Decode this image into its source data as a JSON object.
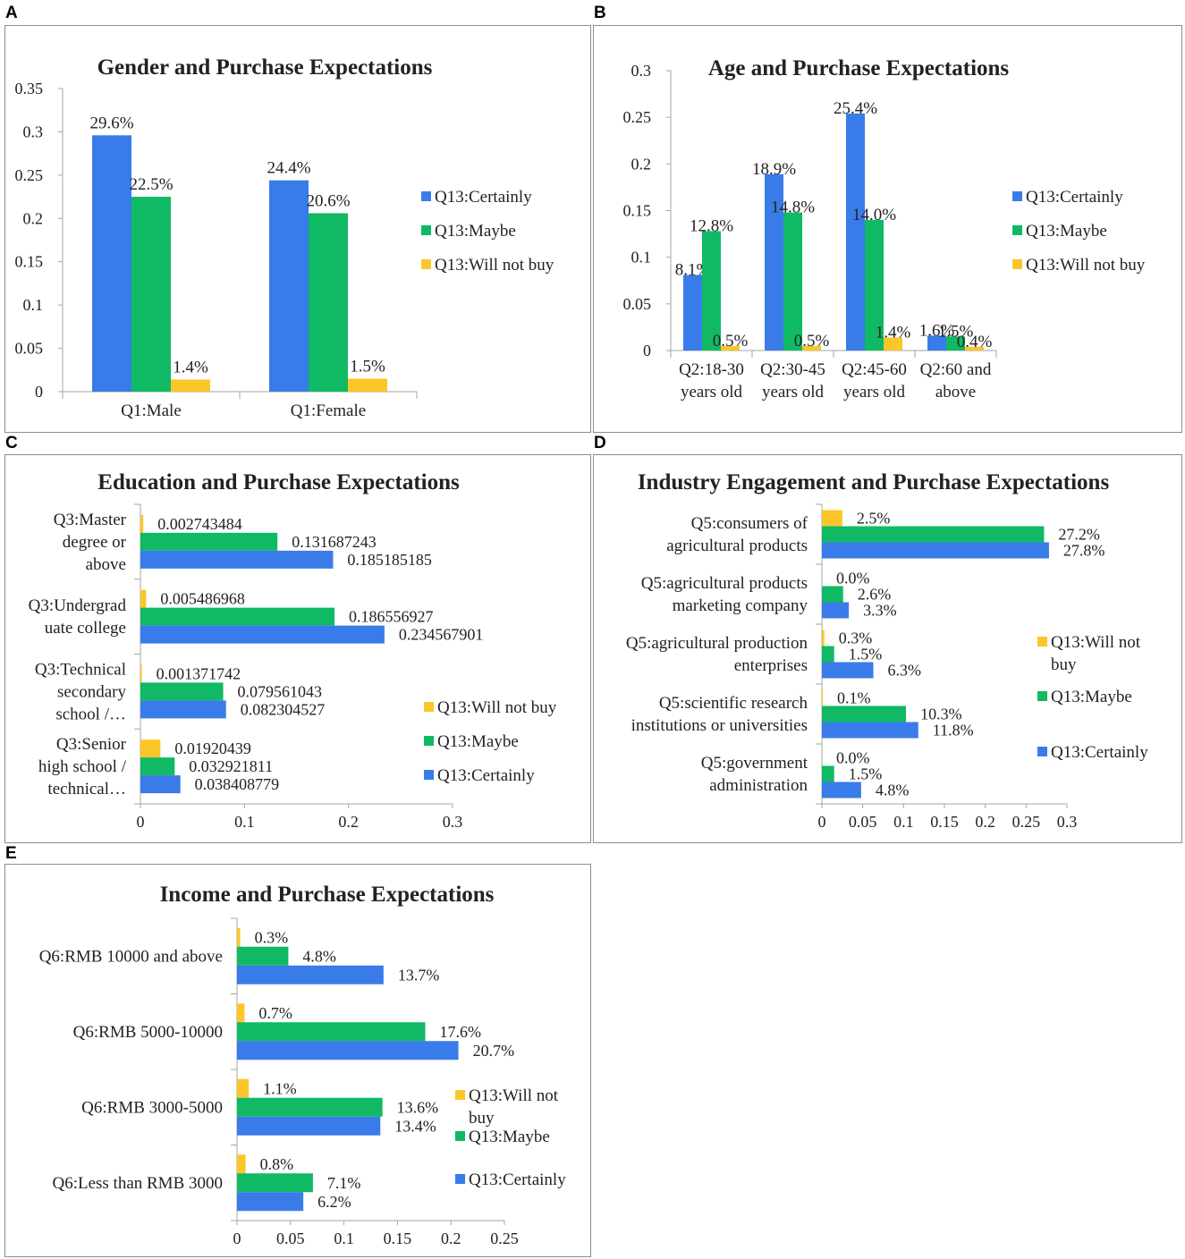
{
  "panel_letters": [
    "A",
    "B",
    "C",
    "D",
    "E"
  ],
  "colors": {
    "certainly": "#3a7bea",
    "maybe": "#10b963",
    "will_not_buy": "#fbc62a",
    "axis": "#a6a6a6",
    "text": "#222222"
  },
  "chart_data": [
    {
      "id": "A",
      "type": "bar",
      "orientation": "vertical",
      "title": "Gender and Purchase Expectations",
      "categories": [
        "Q1:Male",
        "Q1:Female"
      ],
      "category_lines": [
        [
          "Q1:Male"
        ],
        [
          "Q1:Female"
        ]
      ],
      "series": [
        {
          "name": "Q13:Certainly",
          "color": "#3a7bea",
          "values": [
            0.296,
            0.244
          ],
          "labels": [
            "29.6%",
            "24.4%"
          ]
        },
        {
          "name": "Q13:Maybe",
          "color": "#10b963",
          "values": [
            0.225,
            0.206
          ],
          "labels": [
            "22.5%",
            "20.6%"
          ]
        },
        {
          "name": "Q13:Will not buy",
          "color": "#fbc62a",
          "values": [
            0.014,
            0.015
          ],
          "labels": [
            "1.4%",
            "1.5%"
          ]
        }
      ],
      "ylim": [
        0,
        0.35
      ],
      "ticks": [
        0,
        0.05,
        0.1,
        0.15,
        0.2,
        0.25,
        0.3,
        0.35
      ],
      "tick_labels": [
        "0",
        "0.05",
        "0.1",
        "0.15",
        "0.2",
        "0.25",
        "0.3",
        "0.35"
      ],
      "legend": {
        "position": "right",
        "order": [
          "Q13:Certainly",
          "Q13:Maybe",
          "Q13:Will not buy"
        ],
        "lines": [
          [
            "Q13:Certainly"
          ],
          [
            "Q13:Maybe"
          ],
          [
            "Q13:Will not buy"
          ]
        ]
      }
    },
    {
      "id": "B",
      "type": "bar",
      "orientation": "vertical",
      "title": "Age and Purchase Expectations",
      "categories": [
        "Q2:18-30 years old",
        "Q2:30-45 years old",
        "Q2:45-60 years old",
        "Q2:60 and above"
      ],
      "category_lines": [
        [
          "Q2:18-30",
          "years old"
        ],
        [
          "Q2:30-45",
          "years old"
        ],
        [
          "Q2:45-60",
          "years old"
        ],
        [
          "Q2:60 and",
          "above"
        ]
      ],
      "series": [
        {
          "name": "Q13:Certainly",
          "color": "#3a7bea",
          "values": [
            0.081,
            0.189,
            0.254,
            0.016
          ],
          "labels": [
            "8.1%",
            "18.9%",
            "25.4%",
            "1.6%"
          ]
        },
        {
          "name": "Q13:Maybe",
          "color": "#10b963",
          "values": [
            0.128,
            0.148,
            0.14,
            0.015
          ],
          "labels": [
            "12.8%",
            "14.8%",
            "14.0%",
            "1.5%"
          ]
        },
        {
          "name": "Q13:Will not buy",
          "color": "#fbc62a",
          "values": [
            0.005,
            0.005,
            0.014,
            0.004
          ],
          "labels": [
            "0.5%",
            "0.5%",
            "1.4%",
            "0.4%"
          ]
        }
      ],
      "ylim": [
        0,
        0.3
      ],
      "ticks": [
        0,
        0.05,
        0.1,
        0.15,
        0.2,
        0.25,
        0.3
      ],
      "tick_labels": [
        "0",
        "0.05",
        "0.1",
        "0.15",
        "0.2",
        "0.25",
        "0.3"
      ],
      "legend": {
        "position": "right",
        "order": [
          "Q13:Certainly",
          "Q13:Maybe",
          "Q13:Will not buy"
        ],
        "lines": [
          [
            "Q13:Certainly"
          ],
          [
            "Q13:Maybe"
          ],
          [
            "Q13:Will not buy"
          ]
        ]
      }
    },
    {
      "id": "C",
      "type": "bar",
      "orientation": "horizontal",
      "title": "Education and Purchase Expectations",
      "categories": [
        "Q3:Master degree or above",
        "Q3:Undergraduate college",
        "Q3:Technical secondary school /…",
        "Q3:Senior high school / technical…"
      ],
      "category_lines": [
        [
          "Q3:Master",
          "degree or",
          "above"
        ],
        [
          "Q3:Undergrad",
          "uate college"
        ],
        [
          "Q3:Technical",
          "secondary",
          "school /…"
        ],
        [
          "Q3:Senior",
          "high school /",
          "technical…"
        ]
      ],
      "series": [
        {
          "name": "Q13:Will not buy",
          "color": "#fbc62a",
          "values": [
            0.002743484,
            0.005486968,
            0.001371742,
            0.01920439
          ],
          "labels": [
            "0.002743484",
            "0.005486968",
            "0.001371742",
            "0.01920439"
          ]
        },
        {
          "name": "Q13:Maybe",
          "color": "#10b963",
          "values": [
            0.131687243,
            0.186556927,
            0.079561043,
            0.032921811
          ],
          "labels": [
            "0.131687243",
            "0.186556927",
            "0.079561043",
            "0.032921811"
          ]
        },
        {
          "name": "Q13:Certainly",
          "color": "#3a7bea",
          "values": [
            0.185185185,
            0.234567901,
            0.082304527,
            0.038408779
          ],
          "labels": [
            "0.185185185",
            "0.234567901",
            "0.082304527",
            "0.038408779"
          ]
        }
      ],
      "xlim": [
        0,
        0.3
      ],
      "ticks": [
        0,
        0.1,
        0.2,
        0.3
      ],
      "tick_labels": [
        "0",
        "0.1",
        "0.2",
        "0.3"
      ],
      "legend": {
        "position": "right",
        "order": [
          "Q13:Will not buy",
          "Q13:Maybe",
          "Q13:Certainly"
        ],
        "lines": [
          [
            "Q13:Will not buy"
          ],
          [
            "Q13:Maybe"
          ],
          [
            "Q13:Certainly"
          ]
        ]
      }
    },
    {
      "id": "D",
      "type": "bar",
      "orientation": "horizontal",
      "title": "Industry Engagement and Purchase Expectations",
      "categories": [
        "Q5:consumers of agricultural products",
        "Q5:agricultural products marketing company",
        "Q5:agricultural production enterprises",
        "Q5:scientific research institutions or universities",
        "Q5:government administration"
      ],
      "category_lines": [
        [
          "Q5:consumers of",
          "agricultural products"
        ],
        [
          "Q5:agricultural products",
          "marketing company"
        ],
        [
          "Q5:agricultural production",
          "enterprises"
        ],
        [
          "Q5:scientific research",
          "institutions or universities"
        ],
        [
          "Q5:government",
          "administration"
        ]
      ],
      "series": [
        {
          "name": "Q13:Will not buy",
          "color": "#fbc62a",
          "values": [
            0.025,
            0.0,
            0.003,
            0.001,
            0.0
          ],
          "labels": [
            "2.5%",
            "0.0%",
            "0.3%",
            "0.1%",
            "0.0%"
          ]
        },
        {
          "name": "Q13:Maybe",
          "color": "#10b963",
          "values": [
            0.272,
            0.026,
            0.015,
            0.103,
            0.015
          ],
          "labels": [
            "27.2%",
            "2.6%",
            "1.5%",
            "10.3%",
            "1.5%"
          ]
        },
        {
          "name": "Q13:Certainly",
          "color": "#3a7bea",
          "values": [
            0.278,
            0.033,
            0.063,
            0.118,
            0.048
          ],
          "labels": [
            "27.8%",
            "3.3%",
            "6.3%",
            "11.8%",
            "4.8%"
          ]
        }
      ],
      "xlim": [
        0,
        0.3
      ],
      "ticks": [
        0,
        0.05,
        0.1,
        0.15,
        0.2,
        0.25,
        0.3
      ],
      "tick_labels": [
        "0",
        "0.05",
        "0.1",
        "0.15",
        "0.2",
        "0.25",
        "0.3"
      ],
      "legend": {
        "position": "right",
        "order": [
          "Q13:Will not buy",
          "Q13:Maybe",
          "Q13:Certainly"
        ],
        "lines": [
          [
            "Q13:Will not",
            "buy"
          ],
          [
            "Q13:Maybe"
          ],
          [
            "Q13:Certainly"
          ]
        ]
      }
    },
    {
      "id": "E",
      "type": "bar",
      "orientation": "horizontal",
      "title": "Income and Purchase Expectations",
      "categories": [
        "Q6:RMB 10000 and above",
        "Q6:RMB 5000-10000",
        "Q6:RMB 3000-5000",
        "Q6:Less than RMB 3000"
      ],
      "category_lines": [
        [
          "Q6:RMB 10000 and above"
        ],
        [
          "Q6:RMB 5000-10000"
        ],
        [
          "Q6:RMB 3000-5000"
        ],
        [
          "Q6:Less than RMB 3000"
        ]
      ],
      "series": [
        {
          "name": "Q13:Will not buy",
          "color": "#fbc62a",
          "values": [
            0.003,
            0.007,
            0.011,
            0.008
          ],
          "labels": [
            "0.3%",
            "0.7%",
            "1.1%",
            "0.8%"
          ]
        },
        {
          "name": "Q13:Maybe",
          "color": "#10b963",
          "values": [
            0.048,
            0.176,
            0.136,
            0.071
          ],
          "labels": [
            "4.8%",
            "17.6%",
            "13.6%",
            "7.1%"
          ]
        },
        {
          "name": "Q13:Certainly",
          "color": "#3a7bea",
          "values": [
            0.137,
            0.207,
            0.134,
            0.062
          ],
          "labels": [
            "13.7%",
            "20.7%",
            "13.4%",
            "6.2%"
          ]
        }
      ],
      "xlim": [
        0,
        0.25
      ],
      "ticks": [
        0,
        0.05,
        0.1,
        0.15,
        0.2,
        0.25
      ],
      "tick_labels": [
        "0",
        "0.05",
        "0.1",
        "0.15",
        "0.2",
        "0.25"
      ],
      "legend": {
        "position": "right",
        "order": [
          "Q13:Will not buy",
          "Q13:Maybe",
          "Q13:Certainly"
        ],
        "lines": [
          [
            "Q13:Will not",
            "buy"
          ],
          [
            "Q13:Maybe"
          ],
          [
            "Q13:Certainly"
          ]
        ]
      }
    }
  ]
}
